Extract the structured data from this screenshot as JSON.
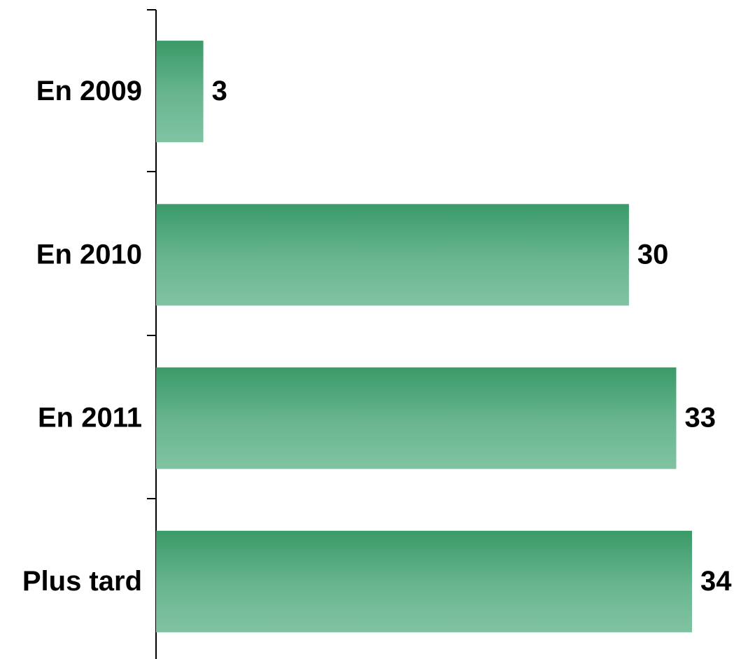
{
  "chart_data": {
    "type": "bar",
    "orientation": "horizontal",
    "categories": [
      "En 2009",
      "En 2010",
      "En 2011",
      "Plus tard"
    ],
    "values": [
      3,
      30,
      33,
      34
    ],
    "color": "#3a9a68"
  }
}
